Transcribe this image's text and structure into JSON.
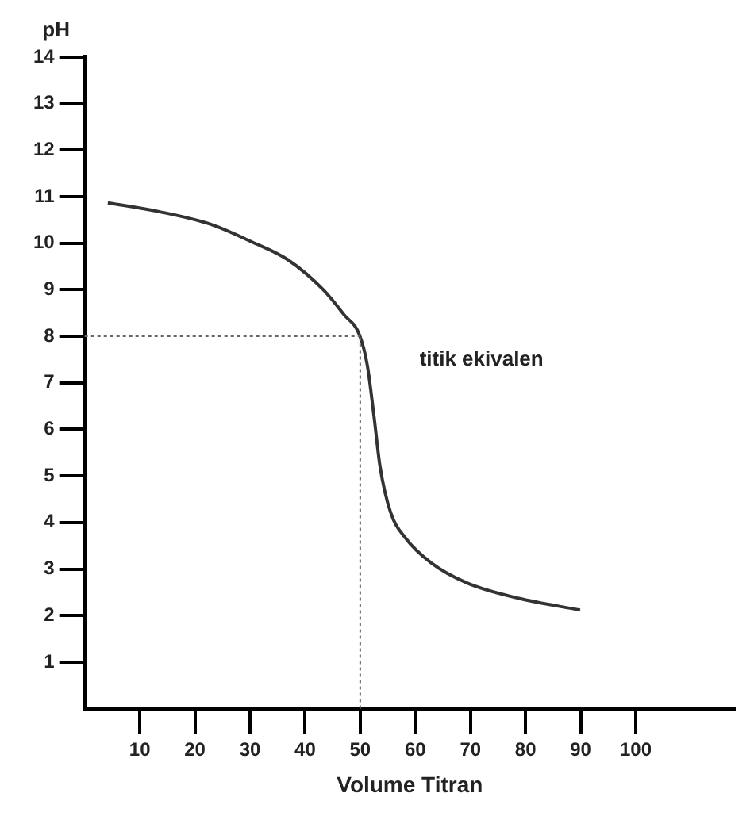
{
  "chart_data": {
    "type": "line",
    "xlabel": "Volume Titran",
    "ylabel": "pH",
    "x": [
      4.2,
      13.5,
      22.8,
      30.3,
      36.8,
      43.3,
      47.1,
      49.9,
      51.3,
      52.5,
      53.6,
      55.5,
      58.2,
      62.9,
      69.4,
      78.8,
      89.9
    ],
    "series": [
      {
        "color": "#333333",
        "values": [
          10.87,
          10.68,
          10.41,
          10.03,
          9.65,
          9.0,
          8.46,
          8.02,
          7.37,
          6.28,
          5.2,
          4.22,
          3.67,
          3.13,
          2.7,
          2.37,
          2.12
        ]
      }
    ],
    "xlim": [
      0,
      118
    ],
    "xticks": [
      10,
      20,
      30,
      40,
      50,
      60,
      70,
      80,
      90,
      100
    ],
    "ylim": [
      0,
      14
    ],
    "yticks": [
      1,
      2,
      3,
      4,
      5,
      6,
      7,
      8,
      9,
      10,
      11,
      12,
      13,
      14
    ],
    "ref_lines": [
      {
        "axis": "y",
        "value": 8,
        "line_style": "dotted",
        "color": "#666666"
      },
      {
        "axis": "x",
        "value": 50,
        "line_style": "dotted",
        "color": "#666666"
      }
    ],
    "annotations": [
      "titik ekivalen"
    ],
    "marker": "none",
    "line_style": "solid",
    "grid": false,
    "legend": false
  }
}
